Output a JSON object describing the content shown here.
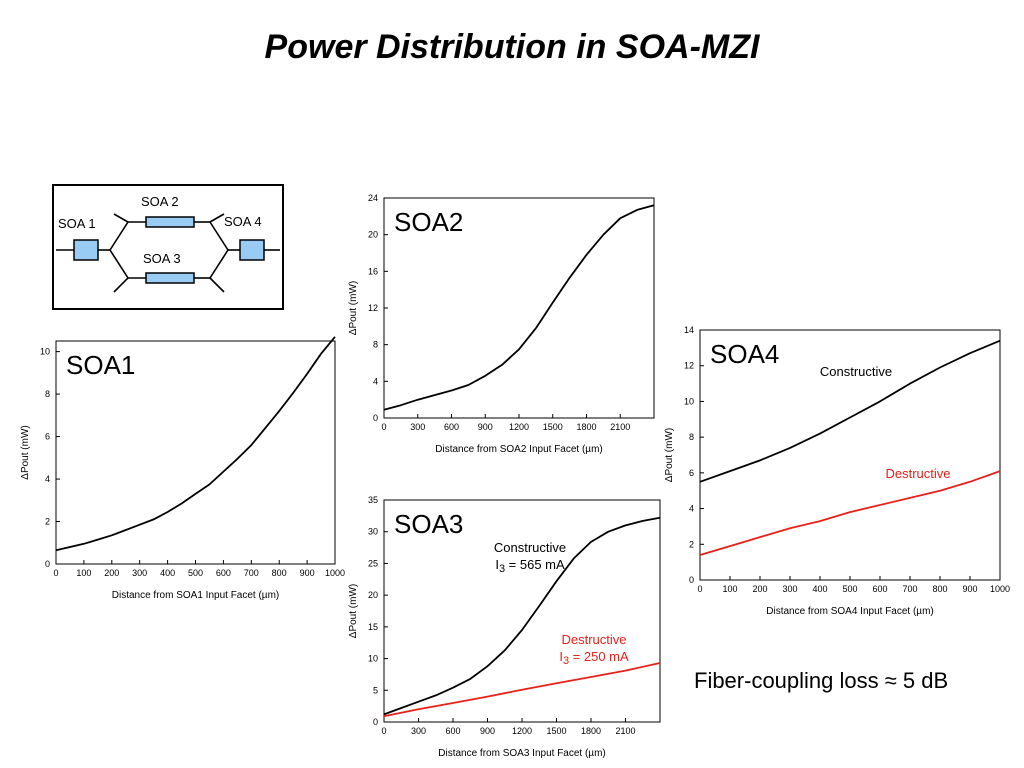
{
  "slide": {
    "title": "Power Distribution in SOA-MZI",
    "note": "Fiber-coupling loss ≈ 5 dB"
  },
  "schematic": {
    "labels": [
      "SOA 1",
      "SOA 2",
      "SOA 3",
      "SOA 4"
    ],
    "soa_fill": "#99ccf2"
  },
  "colors": {
    "constructive": "#000000",
    "destructive": "#e8201a"
  },
  "chart_data": [
    {
      "id": "soa1",
      "type": "line",
      "panel_label": "SOA1",
      "xlabel": "Distance from SOA1 Input Facet (µm)",
      "ylabel": "ΔPout (mW)",
      "xlim": [
        0,
        1000
      ],
      "ylim": [
        0,
        10.5
      ],
      "xticks": [
        0,
        100,
        200,
        300,
        400,
        500,
        600,
        700,
        800,
        900,
        1000
      ],
      "yticks": [
        0,
        2,
        4,
        6,
        8,
        10
      ],
      "series": [
        {
          "annotation": [],
          "color": "#000000",
          "x": [
            0,
            50,
            100,
            150,
            200,
            250,
            300,
            350,
            400,
            450,
            500,
            550,
            600,
            650,
            700,
            750,
            800,
            850,
            900,
            950,
            1000
          ],
          "y": [
            0.65,
            0.8,
            0.95,
            1.15,
            1.35,
            1.6,
            1.85,
            2.1,
            2.45,
            2.85,
            3.3,
            3.75,
            4.35,
            4.95,
            5.6,
            6.4,
            7.2,
            8.05,
            8.95,
            9.9,
            10.7
          ]
        }
      ]
    },
    {
      "id": "soa2",
      "type": "line",
      "panel_label": "SOA2",
      "xlabel": "Distance from SOA2 Input Facet (µm)",
      "ylabel": "ΔPout (mW)",
      "xlim": [
        0,
        2400
      ],
      "ylim": [
        0,
        24
      ],
      "xticks": [
        0,
        300,
        600,
        900,
        1200,
        1500,
        1800,
        2100
      ],
      "yticks": [
        0,
        4,
        8,
        12,
        16,
        20,
        24
      ],
      "series": [
        {
          "annotation": [],
          "color": "#000000",
          "x": [
            0,
            150,
            300,
            450,
            600,
            750,
            900,
            1050,
            1200,
            1350,
            1500,
            1650,
            1800,
            1950,
            2100,
            2250,
            2400
          ],
          "y": [
            0.9,
            1.4,
            2.0,
            2.5,
            3.0,
            3.6,
            4.6,
            5.8,
            7.5,
            9.8,
            12.6,
            15.3,
            17.8,
            20.0,
            21.8,
            22.7,
            23.2
          ]
        }
      ]
    },
    {
      "id": "soa3",
      "type": "line",
      "panel_label": "SOA3",
      "xlabel": "Distance from SOA3 Input Facet (µm)",
      "ylabel": "ΔPout (mW)",
      "xlim": [
        0,
        2400
      ],
      "ylim": [
        0,
        35
      ],
      "xticks": [
        0,
        300,
        600,
        900,
        1200,
        1500,
        1800,
        2100
      ],
      "yticks": [
        0,
        5,
        10,
        15,
        20,
        25,
        30,
        35
      ],
      "series": [
        {
          "annotation": [
            "Constructive",
            "I3 = 565 mA"
          ],
          "color": "#000000",
          "x": [
            0,
            150,
            300,
            450,
            600,
            750,
            900,
            1050,
            1200,
            1350,
            1500,
            1650,
            1800,
            1950,
            2100,
            2250,
            2400
          ],
          "y": [
            1.2,
            2.2,
            3.2,
            4.2,
            5.4,
            6.8,
            8.8,
            11.3,
            14.5,
            18.3,
            22.2,
            25.8,
            28.4,
            30.0,
            31.0,
            31.7,
            32.2
          ]
        },
        {
          "annotation": [
            "Destructive",
            "I3 = 250 mA"
          ],
          "color": "#e8201a",
          "x": [
            0,
            300,
            600,
            900,
            1200,
            1500,
            1800,
            2100,
            2400
          ],
          "y": [
            0.9,
            2.0,
            3.0,
            4.0,
            5.1,
            6.1,
            7.1,
            8.1,
            9.3
          ]
        }
      ]
    },
    {
      "id": "soa4",
      "type": "line",
      "panel_label": "SOA4",
      "xlabel": "Distance from SOA4 Input Facet (µm)",
      "ylabel": "ΔPout (mW)",
      "xlim": [
        0,
        1000
      ],
      "ylim": [
        0,
        14
      ],
      "xticks": [
        0,
        100,
        200,
        300,
        400,
        500,
        600,
        700,
        800,
        900,
        1000
      ],
      "yticks": [
        0,
        2,
        4,
        6,
        8,
        10,
        12,
        14
      ],
      "series": [
        {
          "annotation": [
            "Constructive"
          ],
          "color": "#000000",
          "x": [
            0,
            100,
            200,
            300,
            400,
            500,
            600,
            700,
            800,
            900,
            1000
          ],
          "y": [
            5.5,
            6.1,
            6.7,
            7.4,
            8.2,
            9.1,
            10.0,
            11.0,
            11.9,
            12.7,
            13.4
          ]
        },
        {
          "annotation": [
            "Destructive"
          ],
          "color": "#e8201a",
          "x": [
            0,
            100,
            200,
            300,
            400,
            500,
            600,
            700,
            800,
            900,
            1000
          ],
          "y": [
            1.4,
            1.9,
            2.4,
            2.9,
            3.3,
            3.8,
            4.2,
            4.6,
            5.0,
            5.5,
            6.1
          ]
        }
      ]
    }
  ]
}
